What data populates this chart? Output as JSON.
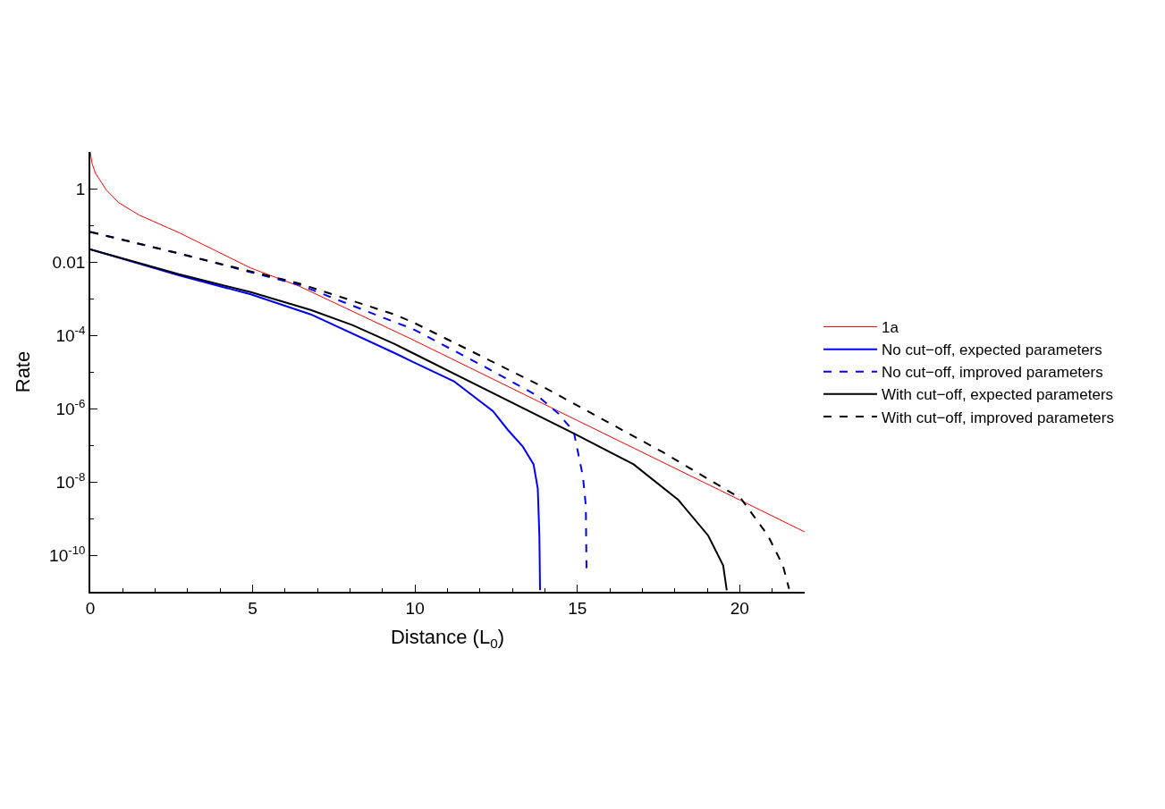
{
  "chart_data": {
    "type": "line",
    "xlabel": "Distance (L$_{0}$)",
    "ylabel": "Rate",
    "log": "y",
    "legend": "right",
    "xlim": [
      0,
      22
    ],
    "xticks": [
      0,
      {
        "value": 1,
        "label": null
      },
      {
        "value": 2,
        "label": null
      },
      {
        "value": 3,
        "label": null
      },
      {
        "value": 4,
        "label": null
      },
      5,
      {
        "value": 6,
        "label": null
      },
      {
        "value": 7,
        "label": null
      },
      {
        "value": 8,
        "label": null
      },
      {
        "value": 9,
        "label": null
      },
      10,
      {
        "value": 11,
        "label": null
      },
      {
        "value": 12,
        "label": null
      },
      {
        "value": 13,
        "label": null
      },
      {
        "value": 14,
        "label": null
      },
      15,
      {
        "value": 16,
        "label": null
      },
      {
        "value": 17,
        "label": null
      },
      {
        "value": 18,
        "label": null
      },
      {
        "value": 19,
        "label": null
      },
      20,
      {
        "value": 21,
        "label": null
      }
    ],
    "ylim": [
      1e-11,
      10
    ],
    "yticks": [
      {
        "value": 1e-10,
        "label": "10$^{-10}$"
      },
      {
        "value": 1e-08,
        "label": "10$^{-8}$"
      },
      {
        "value": 1e-06,
        "label": "10$^{-6}$"
      },
      {
        "value": 0.0001,
        "label": "10$^{-4}$"
      },
      0.01,
      1,
      {
        "value": 1e-09,
        "label": null
      },
      {
        "value": 1e-07,
        "label": null
      },
      {
        "value": 1e-05,
        "label": null
      },
      {
        "value": 0.001,
        "label": null
      },
      {
        "value": 0.1,
        "label": null
      }
    ],
    "series": [
      {
        "name": "1a",
        "color": "#ff0000",
        "line_style": "solid",
        "x": [
          0,
          0.05,
          0.16,
          0.5,
          0.88,
          1.5,
          2.73,
          4.94,
          6.42,
          9.92,
          15,
          20,
          22
        ],
        "values": [
          10,
          5,
          2.6,
          0.9,
          0.41,
          0.19,
          0.063,
          0.0068,
          0.0022,
          7.6e-05,
          4.7e-07,
          3.2e-09,
          4.3e-10
        ]
      },
      {
        "name": "No cut−off, expected parameters",
        "color": "#0000ff",
        "line_style": "solid",
        "x": [
          0,
          2.73,
          4.94,
          6.79,
          9.36,
          9.92,
          11.2,
          12.4,
          12.86,
          13.32,
          13.65,
          13.78,
          13.83,
          13.85
        ],
        "values": [
          0.022,
          0.0043,
          0.0013,
          0.00037,
          3.3e-05,
          1.9e-05,
          5.5e-06,
          8.5e-07,
          2.6e-07,
          9.1e-08,
          3e-08,
          6.6e-09,
          3.4e-10,
          1.1e-11
        ]
      },
      {
        "name": "No cut−off, improved parameters",
        "color": "#0000ff",
        "line_style": "dashed",
        "x": [
          0,
          2.73,
          6.42,
          9.36,
          9.92,
          12.13,
          13.78,
          14.43,
          14.89,
          15.17,
          15.26,
          15.28
        ],
        "values": [
          0.066,
          0.017,
          0.0024,
          0.00023,
          0.00015,
          1.4e-05,
          2.2e-06,
          7.1e-07,
          2.3e-07,
          1.4e-08,
          2.2e-09,
          4.4e-11
        ]
      },
      {
        "name": "With cut−off, expected parameters",
        "color": "#000000",
        "line_style": "solid",
        "x": [
          0,
          2.73,
          4.94,
          6.79,
          8.07,
          9.36,
          9.92,
          14.89,
          16.73,
          18.11,
          19.03,
          19.49,
          19.6
        ],
        "values": [
          0.022,
          0.0046,
          0.0015,
          0.00049,
          0.00019,
          5.8e-05,
          3.3e-05,
          2.1e-07,
          3e-08,
          3.2e-09,
          3.4e-10,
          5.2e-11,
          1.1e-11
        ]
      },
      {
        "name": "With cut−off, improved parameters",
        "color": "#000000",
        "line_style": "dashed",
        "x": [
          0,
          2.73,
          6.42,
          9.36,
          9.92,
          13.97,
          17.65,
          20.04,
          20.87,
          21.33,
          21.52
        ],
        "values": [
          0.066,
          0.017,
          0.0026,
          0.00037,
          0.00023,
          3.8e-06,
          6.3e-08,
          3.5e-09,
          3.4e-10,
          5.2e-11,
          1.2e-11
        ]
      }
    ]
  }
}
